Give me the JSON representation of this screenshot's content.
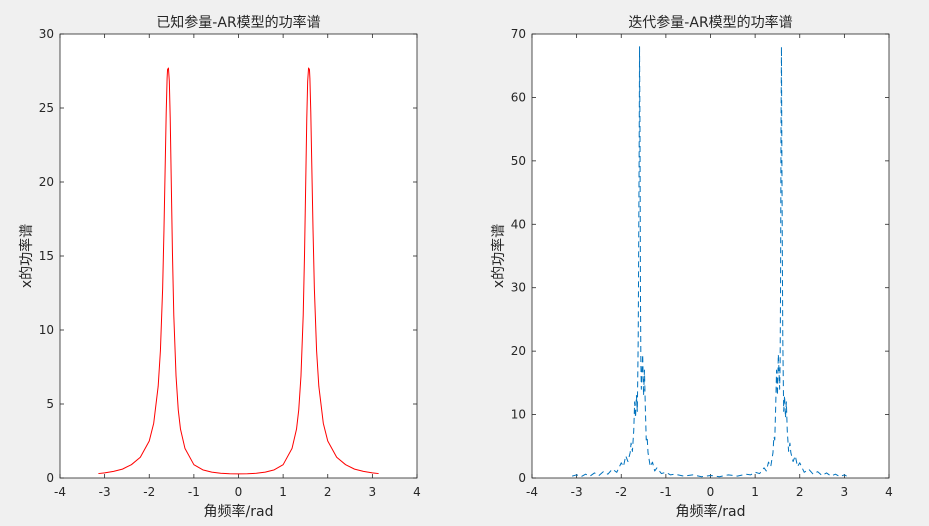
{
  "figure": {
    "background": "#f0f0f0",
    "axes_background": "#ffffff",
    "axes_color": "#262626"
  },
  "chart_data": [
    {
      "type": "line",
      "title": "已知参量-AR模型的功率谱",
      "xlabel": "角频率/rad",
      "ylabel": "x的功率谱",
      "xlim": [
        -4,
        4
      ],
      "ylim": [
        0,
        30
      ],
      "xticks": [
        -4,
        -3,
        -2,
        -1,
        0,
        1,
        2,
        3,
        4
      ],
      "yticks": [
        0,
        5,
        10,
        15,
        20,
        25,
        30
      ],
      "grid": false,
      "line_color": "#ff0000",
      "line_style": "solid",
      "series": [
        {
          "x": [
            -3.14,
            -3.0,
            -2.8,
            -2.6,
            -2.4,
            -2.2,
            -2.0,
            -1.9,
            -1.8,
            -1.75,
            -1.7,
            -1.67,
            -1.64,
            -1.62,
            -1.6,
            -1.59,
            -1.57,
            -1.55,
            -1.53,
            -1.51,
            -1.48,
            -1.45,
            -1.4,
            -1.35,
            -1.3,
            -1.2,
            -1.0,
            -0.8,
            -0.6,
            -0.4,
            -0.2,
            0.0,
            0.2,
            0.4,
            0.6,
            0.8,
            1.0,
            1.2,
            1.3,
            1.35,
            1.4,
            1.45,
            1.48,
            1.51,
            1.53,
            1.55,
            1.57,
            1.59,
            1.6,
            1.62,
            1.64,
            1.67,
            1.7,
            1.75,
            1.8,
            1.9,
            2.0,
            2.2,
            2.4,
            2.6,
            2.8,
            3.0,
            3.14
          ],
          "y": [
            0.3,
            0.35,
            0.45,
            0.6,
            0.9,
            1.4,
            2.5,
            3.7,
            6.2,
            8.6,
            12.8,
            16.8,
            21.5,
            24.7,
            27.0,
            27.6,
            27.7,
            26.8,
            24.3,
            20.6,
            15.2,
            11.0,
            6.9,
            4.6,
            3.3,
            2.0,
            0.9,
            0.55,
            0.4,
            0.32,
            0.29,
            0.28,
            0.29,
            0.32,
            0.4,
            0.55,
            0.9,
            2.0,
            3.3,
            4.6,
            6.9,
            11.0,
            15.2,
            20.6,
            24.3,
            26.8,
            27.7,
            27.6,
            27.0,
            24.7,
            21.5,
            16.8,
            12.8,
            8.6,
            6.2,
            3.7,
            2.5,
            1.4,
            0.9,
            0.6,
            0.45,
            0.35,
            0.3
          ]
        }
      ]
    },
    {
      "type": "line",
      "title": "迭代参量-AR模型的功率谱",
      "xlabel": "角频率/rad",
      "ylabel": "x的功率谱",
      "xlim": [
        -4,
        4
      ],
      "ylim": [
        0,
        70
      ],
      "xticks": [
        -4,
        -3,
        -2,
        -1,
        0,
        1,
        2,
        3,
        4
      ],
      "yticks": [
        0,
        10,
        20,
        30,
        40,
        50,
        60,
        70
      ],
      "grid": false,
      "line_color": "#0072bd",
      "line_style": "dashed",
      "series": [
        {
          "x": [
            -3.1,
            -3.0,
            -2.9,
            -2.8,
            -2.7,
            -2.6,
            -2.5,
            -2.4,
            -2.3,
            -2.2,
            -2.1,
            -2.0,
            -1.95,
            -1.9,
            -1.85,
            -1.8,
            -1.78,
            -1.75,
            -1.72,
            -1.7,
            -1.68,
            -1.66,
            -1.64,
            -1.63,
            -1.62,
            -1.61,
            -1.6,
            -1.59,
            -1.58,
            -1.57,
            -1.56,
            -1.55,
            -1.54,
            -1.52,
            -1.5,
            -1.48,
            -1.46,
            -1.44,
            -1.42,
            -1.4,
            -1.35,
            -1.3,
            -1.25,
            -1.2,
            -1.1,
            -1.0,
            -0.9,
            -0.8,
            -0.6,
            -0.4,
            -0.2,
            0.0,
            0.2,
            0.4,
            0.6,
            0.8,
            0.9,
            1.0,
            1.1,
            1.2,
            1.25,
            1.3,
            1.35,
            1.4,
            1.42,
            1.44,
            1.46,
            1.48,
            1.5,
            1.52,
            1.54,
            1.55,
            1.56,
            1.57,
            1.58,
            1.59,
            1.6,
            1.61,
            1.62,
            1.63,
            1.64,
            1.66,
            1.68,
            1.7,
            1.72,
            1.75,
            1.78,
            1.8,
            1.85,
            1.9,
            1.95,
            2.0,
            2.1,
            2.2,
            2.3,
            2.4,
            2.5,
            2.6,
            2.7,
            2.8,
            2.9,
            3.0,
            3.05
          ],
          "y": [
            0.3,
            0.5,
            0.2,
            0.6,
            0.3,
            0.8,
            0.4,
            1.0,
            0.6,
            1.4,
            0.9,
            2.4,
            1.8,
            3.5,
            2.6,
            4.0,
            5.5,
            4.2,
            7.5,
            12.0,
            9.5,
            13.0,
            10.5,
            16.0,
            22.0,
            35.0,
            50.0,
            68.0,
            55.0,
            30.0,
            18.0,
            14.0,
            16.0,
            19.5,
            13.0,
            17.0,
            11.0,
            6.0,
            6.5,
            4.0,
            1.8,
            2.5,
            1.1,
            1.6,
            0.7,
            0.9,
            0.5,
            0.6,
            0.3,
            0.5,
            0.2,
            0.4,
            0.2,
            0.5,
            0.3,
            0.6,
            0.5,
            0.9,
            0.7,
            1.6,
            1.1,
            2.5,
            1.8,
            4.0,
            6.5,
            6.0,
            11.0,
            17.0,
            13.0,
            19.5,
            16.0,
            14.0,
            18.0,
            30.0,
            55.0,
            68.0,
            50.0,
            35.0,
            22.0,
            16.0,
            10.5,
            13.0,
            9.5,
            12.0,
            7.5,
            4.2,
            5.5,
            4.0,
            2.6,
            3.5,
            1.8,
            2.4,
            0.9,
            1.4,
            0.6,
            1.0,
            0.4,
            0.8,
            0.3,
            0.6,
            0.2,
            0.5,
            0.3
          ]
        }
      ]
    }
  ]
}
